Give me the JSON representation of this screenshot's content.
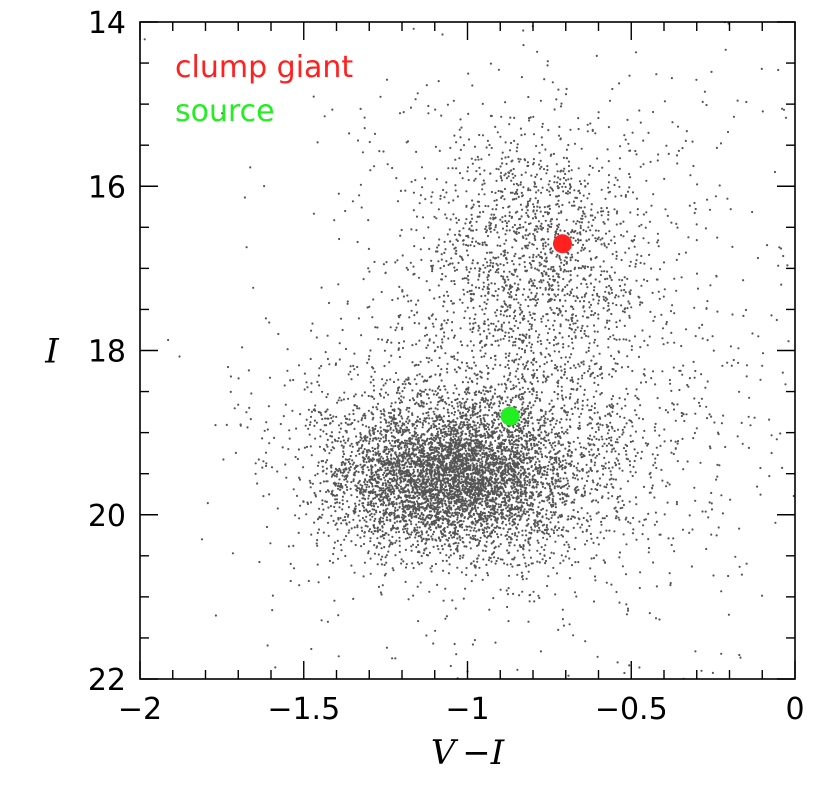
{
  "chart_data": {
    "type": "scatter",
    "title": "",
    "xlabel": "V −I",
    "ylabel": "I",
    "xlim": [
      -2.0,
      0.0
    ],
    "ylim": [
      22,
      14
    ],
    "y_inverted": true,
    "grid": false,
    "legend_placement": "top-left",
    "x_ticks": [
      -2,
      -1.5,
      -1,
      -0.5,
      0
    ],
    "x_tick_labels": [
      "−2",
      "−1.5",
      "−1",
      "−0.5",
      "0"
    ],
    "y_ticks": [
      14,
      16,
      18,
      20,
      22
    ],
    "y_tick_labels": [
      "14",
      "16",
      "18",
      "20",
      "22"
    ],
    "series": [
      {
        "name": "clump giant",
        "color": "#ff2020",
        "points": [
          {
            "x": -0.71,
            "y": 16.7
          }
        ]
      },
      {
        "name": "source",
        "color": "#22ee22",
        "points": [
          {
            "x": -0.87,
            "y": 18.8
          }
        ]
      }
    ],
    "field_stars": {
      "color": "#555555",
      "density_model": [
        {
          "x": -1.05,
          "y": 19.55,
          "sx": 0.18,
          "sy": 0.42,
          "weight": 0.48
        },
        {
          "x": -0.95,
          "y": 19.2,
          "sx": 0.28,
          "sy": 0.75,
          "weight": 0.22
        },
        {
          "x": -0.8,
          "y": 16.9,
          "sx": 0.17,
          "sy": 0.75,
          "weight": 0.16
        },
        {
          "x": -0.75,
          "y": 18.0,
          "sx": 0.4,
          "sy": 2.2,
          "weight": 0.14
        }
      ]
    }
  }
}
